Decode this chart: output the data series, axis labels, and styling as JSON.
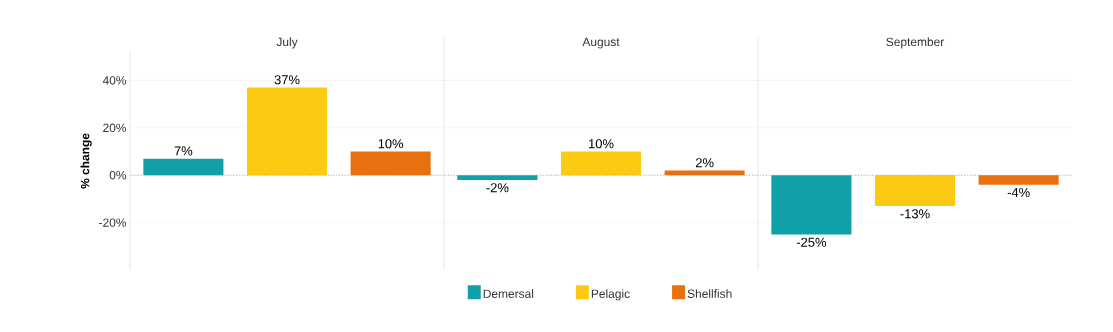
{
  "chart_data": {
    "type": "bar",
    "ylabel": "% change",
    "categories": [
      "July",
      "August",
      "September"
    ],
    "series": [
      {
        "name": "Demersal",
        "color": "#10a0a8",
        "values": [
          7,
          -2,
          -25
        ],
        "value_labels": [
          "7%",
          "-2%",
          "-25%"
        ]
      },
      {
        "name": "Pelagic",
        "color": "#fcca12",
        "values": [
          37,
          10,
          -13
        ],
        "value_labels": [
          "37%",
          "10%",
          "-13%"
        ]
      },
      {
        "name": "Shellfish",
        "color": "#e8700e",
        "values": [
          10,
          2,
          -4
        ],
        "value_labels": [
          "10%",
          "2%",
          "-4%"
        ]
      }
    ],
    "ylim": [
      -40,
      52
    ],
    "yticks": [
      {
        "value": -20,
        "label": "-20%"
      },
      {
        "value": 0,
        "label": "0%"
      },
      {
        "value": 20,
        "label": "20%"
      },
      {
        "value": 40,
        "label": "40%"
      }
    ],
    "ref_lines": [
      {
        "axis": "y",
        "value": 0,
        "color": "#8c8c8c",
        "line_style": "dotted"
      }
    ],
    "grid": "y",
    "legend": "bottom"
  }
}
